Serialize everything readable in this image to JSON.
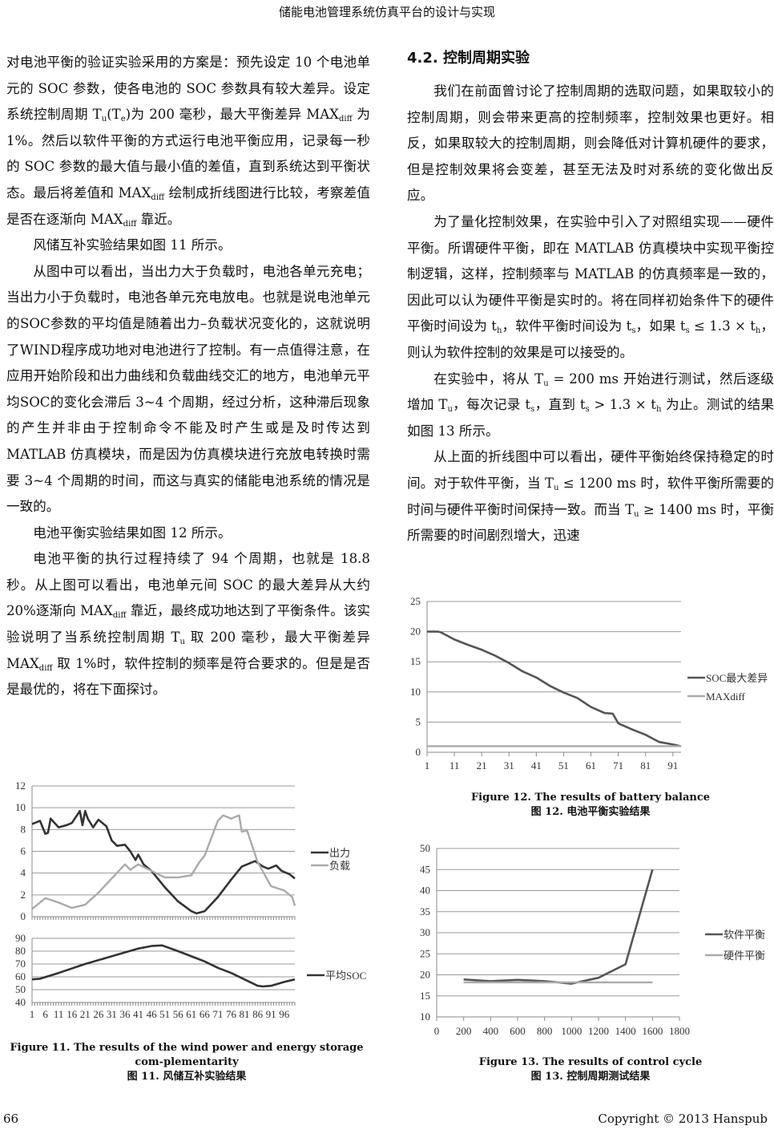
{
  "header": {
    "running_title": "储能电池管理系统仿真平台的设计与实现"
  },
  "left_column": {
    "paragraphs": [
      {
        "indent": false,
        "runs": [
          "对电池平衡的验证实验采用的方案是：预先设定 10 个电池单元的 SOC 参数，使各电池的 SOC 参数具有较大差异。设定系统控制周期 T",
          {
            "sub": "u"
          },
          "(T",
          {
            "sub": "e"
          },
          ")为 200 毫秒，最大平衡差异 MAX",
          {
            "sub": "diff"
          },
          " 为 1%。然后以软件平衡的方式运行电池平衡应用，记录每一秒的 SOC 参数的最大值与最小值的差值，直到系统达到平衡状态。最后将差值和 MAX",
          {
            "sub": "diff"
          },
          " 绘制成折线图进行比较，考察差值是否在逐渐向 MAX",
          {
            "sub": "diff"
          },
          " 靠近。"
        ]
      },
      {
        "indent": true,
        "runs": [
          "风储互补实验结果如图 11 所示。"
        ]
      },
      {
        "indent": true,
        "runs": [
          "从图中可以看出，当出力大于负载时，电池各单元充电；当出力小于负载时，电池各单元充电放电。也就是说电池单元的SOC参数的平均值是随着出力–负载状况变化的，这就说明了WIND程序成功地对电池进行了控制。有一点值得注意，在应用开始阶段和出力曲线和负载曲线交汇的地方，电池单元平均SOC的变化会滞后 3~4 个周期，经过分析，这种滞后现象的产生并非由于控制命令不能及时产生或是及时传达到 MATLAB 仿真模块，而是因为仿真模块进行充放电转换时需要 3~4 个周期的时间，而这与真实的储能电池系统的情况是一致的。"
        ]
      },
      {
        "indent": true,
        "runs": [
          "电池平衡实验结果如图 12 所示。"
        ]
      },
      {
        "indent": true,
        "runs": [
          "电池平衡的执行过程持续了 94 个周期，也就是 18.8 秒。从上图可以看出，电池单元间 SOC 的最大差异从大约 20%逐渐向 MAX",
          {
            "sub": "diff"
          },
          " 靠近，最终成功地达到了平衡条件。该实验说明了当系统控制周期 T",
          {
            "sub": "u"
          },
          " 取 200 毫秒，最大平衡差异 MAX",
          {
            "sub": "diff"
          },
          " 取 1%时，软件控制的频率是符合要求的。但是是否是最优的，将在下面探讨。"
        ]
      }
    ]
  },
  "right_column": {
    "heading": "4.2.  控制周期实验",
    "paragraphs": [
      {
        "indent": true,
        "runs": [
          "我们在前面曾讨论了控制周期的选取问题，如果取较小的控制周期，则会带来更高的控制频率，控制效果也更好。相反，如果取较大的控制周期，则会降低对计算机硬件的要求，但是控制效果将会变差，甚至无法及时对系统的变化做出反应。"
        ]
      },
      {
        "indent": true,
        "runs": [
          "为了量化控制效果，在实验中引入了对照组实现——硬件平衡。所谓硬件平衡，即在 MATLAB 仿真模块中实现平衡控制逻辑，这样，控制频率与 MATLAB 的仿真频率是一致的，因此可以认为硬件平衡是实时的。将在同样初始条件下的硬件平衡时间设为 t",
          {
            "sub": "h"
          },
          "，软件平衡时间设为 t",
          {
            "sub": "s"
          },
          "，如果 t",
          {
            "sub": "s"
          },
          " ≤ 1.3 × t",
          {
            "sub": "h"
          },
          "，则认为软件控制的效果是可以接受的。"
        ]
      },
      {
        "indent": true,
        "runs": [
          "在实验中，将从 T",
          {
            "sub": "u"
          },
          " = 200 ms 开始进行测试，然后逐级增加 T",
          {
            "sub": "u"
          },
          "，每次记录 t",
          {
            "sub": "s"
          },
          "，直到 t",
          {
            "sub": "s"
          },
          " > 1.3 × t",
          {
            "sub": "h"
          },
          " 为止。测试的结果如图 13 所示。"
        ]
      },
      {
        "indent": true,
        "runs": [
          "从上面的折线图中可以看出，硬件平衡始终保持稳定的时间。对于软件平衡，当 T",
          {
            "sub": "u"
          },
          " ≤ 1200 ms 时，软件平衡所需要的时间与硬件平衡时间保持一致。而当 T",
          {
            "sub": "u"
          },
          " ≥ 1400 ms 时，平衡所需要的时间剧烈增大，迅速"
        ]
      }
    ]
  },
  "figures": {
    "fig11": {
      "caption_en": "Figure 11. The results of the wind power and energy storage com-plementarity",
      "caption_cn": "图 11.  风储互补实验结果"
    },
    "fig12": {
      "caption_en": "Figure 12. The results of battery balance",
      "caption_cn": "图 12.  电池平衡实验结果"
    },
    "fig13": {
      "caption_en": "Figure 13. The results of control cycle",
      "caption_cn": "图 13.  控制周期测试结果"
    }
  },
  "chart_data": [
    {
      "id": "fig11-top",
      "type": "line",
      "grid": true,
      "legend": "right",
      "xlim": [
        1,
        100
      ],
      "ylim": [
        0,
        12
      ],
      "yticks": [
        "0",
        "2",
        "4",
        "6",
        "8",
        "10",
        "12"
      ],
      "series": [
        {
          "name": "出力",
          "color": "#333333",
          "x": [
            1,
            4,
            6,
            7,
            8,
            11,
            14,
            16,
            19,
            20,
            21,
            22,
            24,
            26,
            29,
            31,
            33,
            36,
            38,
            40,
            41,
            43,
            46,
            51,
            56,
            61,
            63,
            66,
            71,
            76,
            80,
            85,
            88,
            90,
            93,
            95,
            98,
            100
          ],
          "y": [
            8.5,
            8.8,
            7.6,
            7.7,
            9.0,
            8.2,
            8.4,
            8.6,
            9.7,
            8.4,
            9.7,
            9.0,
            8.2,
            8.9,
            8.3,
            7.0,
            6.5,
            6.6,
            6.0,
            5.2,
            5.7,
            4.8,
            4.2,
            2.7,
            1.4,
            0.5,
            0.3,
            0.5,
            1.8,
            3.4,
            4.6,
            5.1,
            4.6,
            4.4,
            4.7,
            4.2,
            3.9,
            3.5
          ]
        },
        {
          "name": "负载",
          "color": "#aaaaaa",
          "x": [
            1,
            6,
            11,
            16,
            21,
            26,
            31,
            36,
            38,
            41,
            46,
            51,
            56,
            61,
            64,
            66,
            71,
            73,
            76,
            79,
            80,
            82,
            86,
            91,
            96,
            99,
            100
          ],
          "y": [
            0.7,
            1.7,
            1.3,
            0.8,
            1.1,
            2.2,
            3.5,
            4.8,
            4.3,
            4.8,
            4.2,
            3.6,
            3.6,
            3.8,
            5.0,
            5.6,
            8.8,
            9.3,
            9.0,
            9.3,
            7.8,
            7.9,
            5.0,
            2.8,
            2.4,
            1.8,
            1.0
          ]
        }
      ]
    },
    {
      "id": "fig11-bottom",
      "type": "line",
      "grid": true,
      "legend": "right",
      "xlim": [
        1,
        100
      ],
      "ylim": [
        40,
        90
      ],
      "yticks": [
        "40",
        "50",
        "60",
        "70",
        "80",
        "90"
      ],
      "xticks": [
        "1",
        "6",
        "11",
        "16",
        "21",
        "26",
        "31",
        "36",
        "41",
        "46",
        "51",
        "56",
        "61",
        "66",
        "71",
        "76",
        "81",
        "86",
        "91",
        "96"
      ],
      "series": [
        {
          "name": "平均SOC",
          "color": "#333333",
          "x": [
            1,
            4,
            11,
            21,
            31,
            41,
            46,
            50,
            56,
            61,
            66,
            71,
            76,
            81,
            86,
            88,
            91,
            96,
            100
          ],
          "y": [
            58,
            58.5,
            63,
            70,
            76,
            82,
            84,
            84.5,
            80,
            76,
            72,
            67,
            63,
            58,
            53,
            52.5,
            53,
            56,
            58
          ]
        }
      ]
    },
    {
      "id": "fig12",
      "type": "line",
      "grid": true,
      "legend": "right",
      "xlim": [
        1,
        94
      ],
      "ylim": [
        0,
        25
      ],
      "yticks": [
        "0",
        "5",
        "10",
        "15",
        "20",
        "25"
      ],
      "xticks": [
        "1",
        "11",
        "21",
        "31",
        "41",
        "51",
        "61",
        "71",
        "81",
        "91"
      ],
      "series": [
        {
          "name": "SOC最大差异",
          "color": "#555555",
          "x": [
            1,
            5,
            6,
            11,
            16,
            21,
            26,
            31,
            36,
            41,
            46,
            51,
            56,
            61,
            66,
            69,
            71,
            76,
            81,
            86,
            91,
            94
          ],
          "y": [
            20,
            20,
            19.9,
            18.7,
            17.8,
            17,
            16,
            14.8,
            13.4,
            12.4,
            11,
            9.9,
            9,
            7.5,
            6.5,
            6.4,
            4.8,
            3.8,
            2.9,
            1.7,
            1.3,
            1.0
          ]
        },
        {
          "name": "MAXdiff",
          "color": "#aaaaaa",
          "x": [
            1,
            94
          ],
          "y": [
            1,
            1
          ]
        }
      ]
    },
    {
      "id": "fig13",
      "type": "line",
      "grid": true,
      "legend": "right",
      "xlim": [
        0,
        1800
      ],
      "ylim": [
        10,
        50
      ],
      "yticks": [
        "10",
        "15",
        "20",
        "25",
        "30",
        "35",
        "40",
        "45",
        "50"
      ],
      "xticks": [
        "0",
        "200",
        "400",
        "600",
        "800",
        "1000",
        "1200",
        "1400",
        "1600",
        "1800"
      ],
      "series": [
        {
          "name": "软件平衡",
          "color": "#555555",
          "x": [
            200,
            400,
            600,
            800,
            1000,
            1200,
            1400,
            1600
          ],
          "y": [
            18.9,
            18.5,
            18.8,
            18.5,
            17.9,
            19.3,
            22.5,
            45
          ]
        },
        {
          "name": "硬件平衡",
          "color": "#aaaaaa",
          "x": [
            200,
            400,
            600,
            800,
            1000,
            1200,
            1400,
            1600
          ],
          "y": [
            18.2,
            18.2,
            18.2,
            18.2,
            18.2,
            18.2,
            18.2,
            18.2
          ]
        }
      ]
    }
  ],
  "footer": {
    "page_number": "66",
    "copyright": "Copyright © 2013 Hanspub"
  }
}
